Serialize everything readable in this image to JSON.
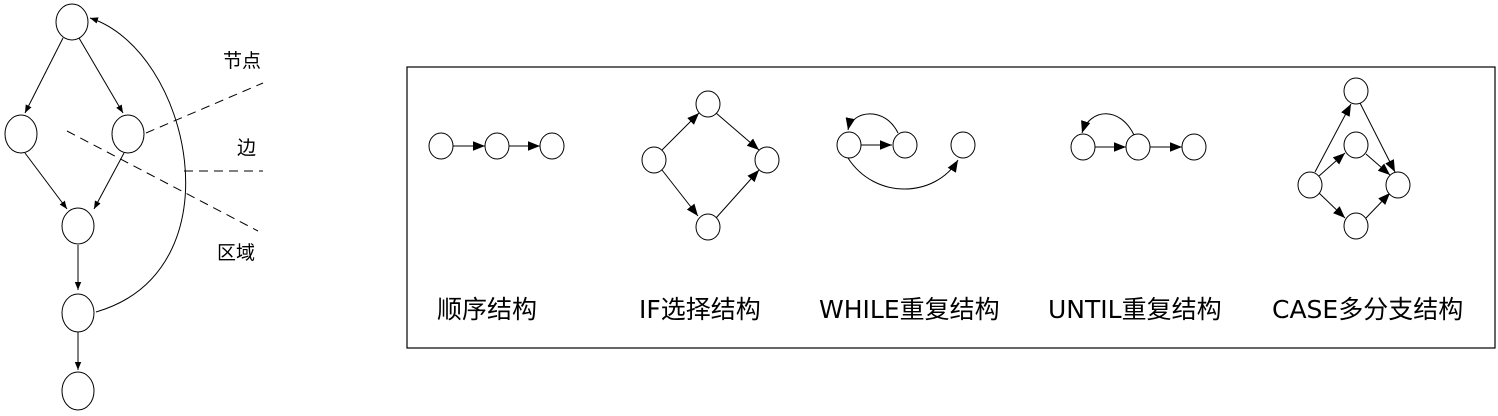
{
  "left_graph": {
    "annotations": [
      "节点",
      "边",
      "区域"
    ]
  },
  "structures": [
    {
      "label": "顺序结构"
    },
    {
      "label": "IF选择结构"
    },
    {
      "label": "WHILE重复结构"
    },
    {
      "label": "UNTIL重复结构"
    },
    {
      "label": "CASE多分支结构"
    }
  ],
  "colors": {
    "stroke": "#000000",
    "background": "#ffffff"
  }
}
